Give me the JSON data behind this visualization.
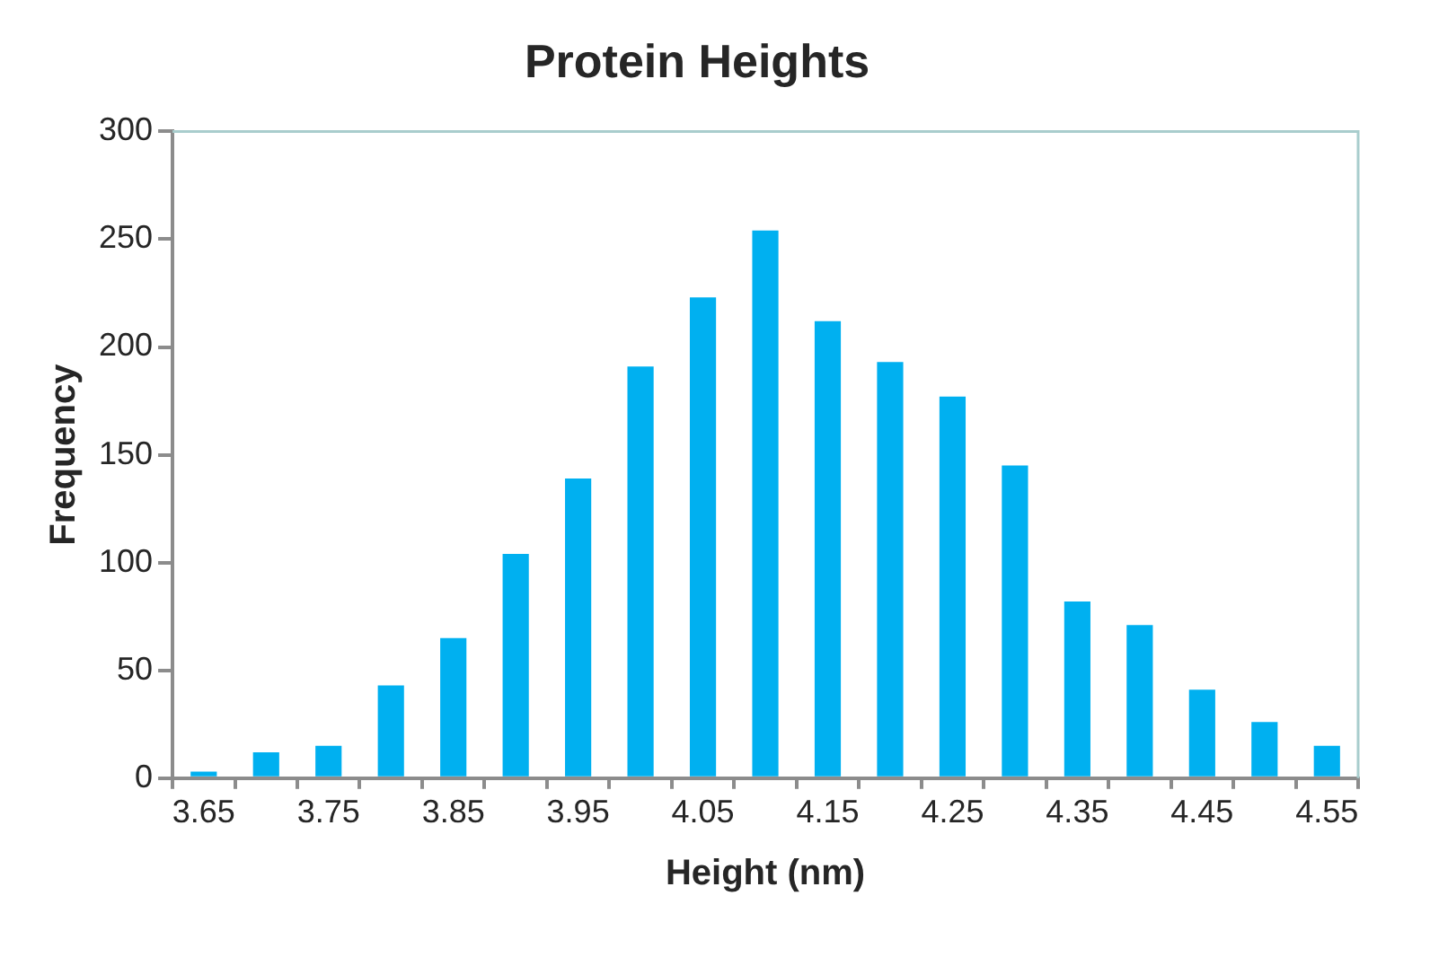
{
  "chart_data": {
    "type": "bar",
    "title": "Protein Heights",
    "xlabel": "Height (nm)",
    "ylabel": "Frequency",
    "categories": [
      "3.65",
      null,
      "3.75",
      null,
      "3.85",
      null,
      "3.95",
      null,
      "4.05",
      null,
      "4.15",
      null,
      "4.25",
      null,
      "4.35",
      null,
      "4.45",
      null,
      "4.55"
    ],
    "values": [
      3,
      12,
      15,
      43,
      65,
      104,
      139,
      191,
      223,
      254,
      212,
      193,
      177,
      145,
      82,
      71,
      41,
      26,
      15
    ],
    "color": "#00b0f0",
    "ylim": [
      0,
      300
    ],
    "yticks": [
      0,
      50,
      100,
      150,
      200,
      250,
      300
    ],
    "grid": false,
    "legend": false
  }
}
